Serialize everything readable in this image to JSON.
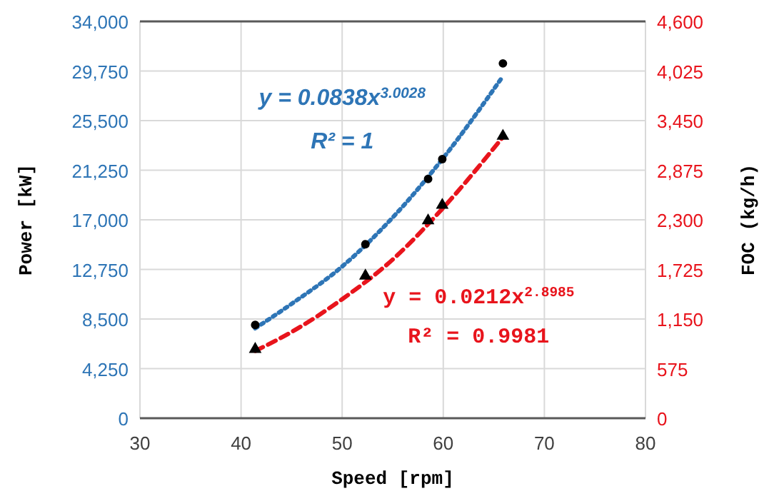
{
  "chart_data": {
    "type": "scatter",
    "xlabel": "Speed [rpm]",
    "ylabel": "Power [kW]",
    "y2label": "FOC (kg/h)",
    "xlim": [
      30,
      80
    ],
    "xticks": [
      30,
      40,
      50,
      60,
      70,
      80
    ],
    "ylim": [
      0,
      34000
    ],
    "yticks": [
      {
        "value": 0,
        "label": "0"
      },
      {
        "value": 4250,
        "label": "4,250"
      },
      {
        "value": 8500,
        "label": "8,500"
      },
      {
        "value": 12750,
        "label": "12,750"
      },
      {
        "value": 17000,
        "label": "17,000"
      },
      {
        "value": 21250,
        "label": "21,250"
      },
      {
        "value": 25500,
        "label": "25,500"
      },
      {
        "value": 29750,
        "label": "29,750"
      },
      {
        "value": 34000,
        "label": "34,000"
      }
    ],
    "y2lim": [
      0,
      4600
    ],
    "y2ticks": [
      {
        "value": 0,
        "label": "0"
      },
      {
        "value": 575,
        "label": "575"
      },
      {
        "value": 1150,
        "label": "1,150"
      },
      {
        "value": 1725,
        "label": "1,725"
      },
      {
        "value": 2300,
        "label": "2,300"
      },
      {
        "value": 2875,
        "label": "2,875"
      },
      {
        "value": 3450,
        "label": "3,450"
      },
      {
        "value": 4025,
        "label": "4,025"
      },
      {
        "value": 4600,
        "label": "4,600"
      }
    ],
    "grid": true,
    "series": [
      {
        "type": "line",
        "color": "#2e75b6",
        "line_style": "dotted",
        "marker": "none",
        "x": [
          41.4,
          45,
          50,
          55,
          60,
          65.9
        ],
        "values": [
          7700,
          9800,
          13000,
          17200,
          22300,
          29300
        ]
      },
      {
        "type": "line",
        "axis": "y2",
        "color": "#e8141c",
        "line_style": "dashed",
        "marker": "none",
        "x": [
          41.4,
          45,
          50,
          55,
          60,
          65.9
        ],
        "values": [
          780,
          1000,
          1380,
          1840,
          2440,
          3260
        ]
      },
      {
        "type": "scatter",
        "color": "#000000",
        "marker": "circle",
        "x": [
          41.4,
          52.3,
          58.5,
          59.9,
          65.9
        ],
        "values": [
          8000,
          14900,
          20500,
          22200,
          30400
        ]
      },
      {
        "type": "scatter",
        "axis": "y2",
        "color": "#000000",
        "marker": "triangle",
        "x": [
          41.4,
          52.3,
          58.5,
          59.9,
          65.9
        ],
        "values": [
          800,
          1650,
          2290,
          2470,
          3270
        ]
      }
    ],
    "annotations": [
      "y = 0.0838x$^{3.0028}$",
      "R² = 1",
      "y = 0.0212x$^{2.8985}$",
      "R² = 0.9981"
    ]
  }
}
